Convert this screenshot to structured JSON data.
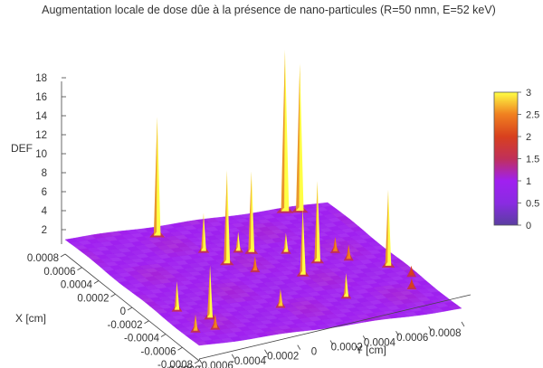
{
  "chart_data": {
    "type": "surface",
    "title": "Augmentation locale de dose dûe à la présence de nano-particules (R=50 nmn, E=52 keV)",
    "zlabel": "DEF",
    "xlabel": "X [cm]",
    "ylabel": "Y [cm]",
    "zlim": [
      0,
      18
    ],
    "xlim": [
      -0.0008,
      0.0008
    ],
    "ylim": [
      -0.0008,
      0.0008
    ],
    "z_ticks": [
      "2",
      "4",
      "6",
      "8",
      "10",
      "12",
      "14",
      "16",
      "18"
    ],
    "x_ticks": [
      "0.0008",
      "0.0006",
      "0.0004",
      "0.0002",
      "0",
      "-0.0002",
      "-0.0004",
      "-0.0006",
      "-0.0008"
    ],
    "y_ticks": [
      "0.0008",
      "0.0006",
      "0.0004",
      "0.0002",
      "0",
      "-0.0002",
      "-0.0004",
      "-0.0006",
      "-0.0008"
    ],
    "colorbar": {
      "range": [
        0,
        3
      ],
      "ticks": [
        "3",
        "2.5",
        "2",
        "1.5",
        "1",
        "0.5",
        "0"
      ],
      "colors": [
        "#5a3ea0",
        "#8a2be2",
        "#a020f0",
        "#c0305a",
        "#d8401e",
        "#f08020",
        "#ffff44"
      ]
    },
    "base_level": 1,
    "peaks": [
      {
        "x": -0.0006,
        "y": -0.00072,
        "z": 2.7
      },
      {
        "x": -0.0003,
        "y": -0.00068,
        "z": 4.0
      },
      {
        "x": 0.00068,
        "y": -0.0003,
        "z": 13.5
      },
      {
        "x": 0.0004,
        "y": -0.00016,
        "z": 5.0
      },
      {
        "x": 0.0002,
        "y": -0.00012,
        "z": 10.8
      },
      {
        "x": 0.00034,
        "y": 2e-05,
        "z": 3.0
      },
      {
        "x": 0.0003,
        "y": 8e-05,
        "z": 9.5
      },
      {
        "x": 6e-05,
        "y": -2e-05,
        "z": 2.5
      },
      {
        "x": 0.00024,
        "y": 0.00026,
        "z": 3.0
      },
      {
        "x": 0.00076,
        "y": 0.00052,
        "z": 18.0
      },
      {
        "x": 0.00074,
        "y": 0.0006,
        "z": 16.5
      },
      {
        "x": -0.00046,
        "y": -0.00056,
        "z": 6.5
      },
      {
        "x": -0.0006,
        "y": -0.0006,
        "z": 2.5
      },
      {
        "x": -0.00044,
        "y": -0.00012,
        "z": 2.8
      },
      {
        "x": -0.00044,
        "y": 0.00028,
        "z": 3.5
      },
      {
        "x": -8e-05,
        "y": 0.0002,
        "z": 8.0
      },
      {
        "x": 6e-05,
        "y": 0.00036,
        "z": 9.5
      },
      {
        "x": 0.00016,
        "y": 0.00052,
        "z": 2.5
      },
      {
        "x": 4e-05,
        "y": 0.00054,
        "z": 2.5
      },
      {
        "x": -0.00012,
        "y": 0.0007,
        "z": 9.0
      },
      {
        "x": -0.00028,
        "y": 0.00076,
        "z": 2.0
      },
      {
        "x": -0.00044,
        "y": 0.00068,
        "z": 2.0
      }
    ]
  }
}
